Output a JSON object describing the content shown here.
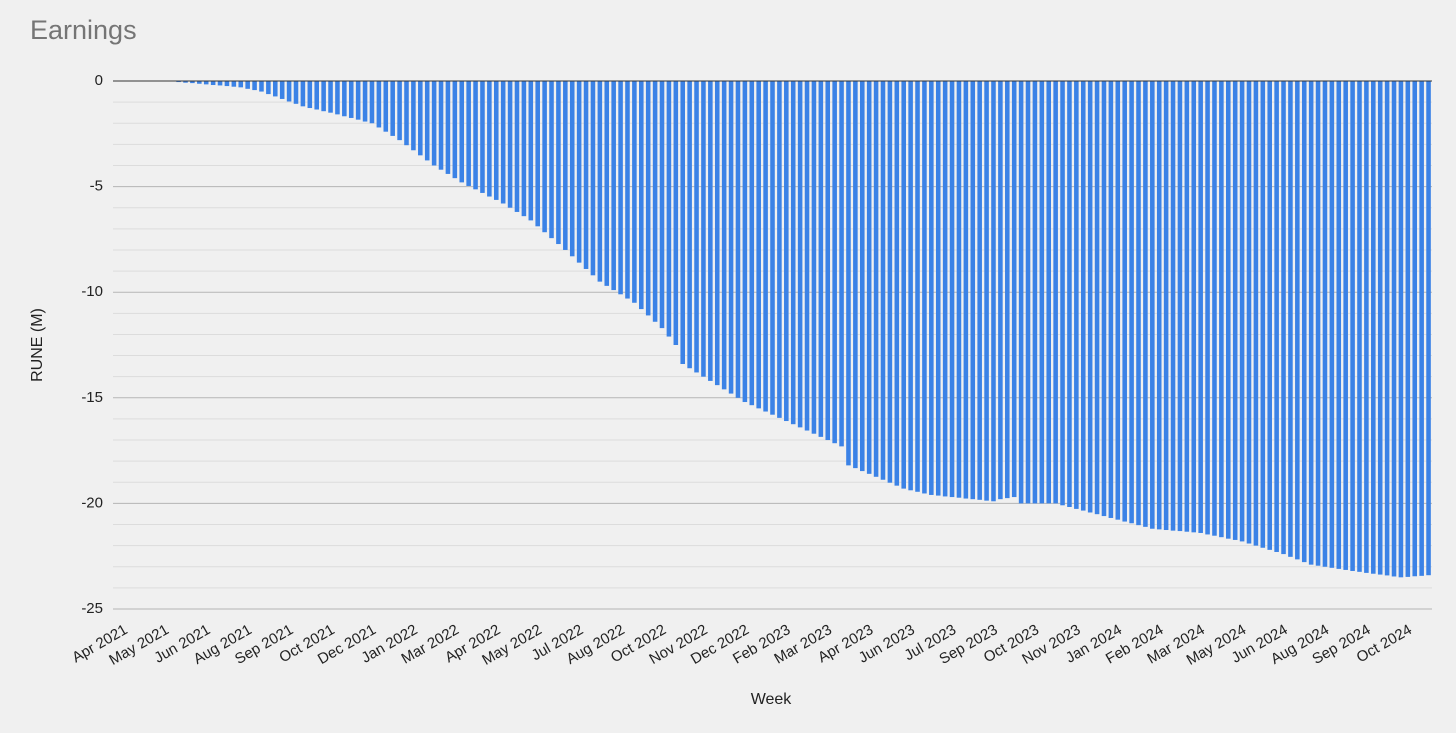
{
  "chart_data": {
    "type": "bar",
    "title": "Earnings",
    "x_label": "Week",
    "y_label": "RUNE (M)",
    "color": "#3b82e6",
    "grid": true,
    "ylim": [
      -25,
      0
    ],
    "yticks": [
      0,
      -5,
      -10,
      -15,
      -20,
      -25
    ],
    "yminor": [
      -1,
      -2,
      -3,
      -4,
      -6,
      -7,
      -8,
      -9,
      -11,
      -12,
      -13,
      -14,
      -16,
      -17,
      -18,
      -19,
      -21,
      -22,
      -23,
      -24
    ],
    "categories": [
      "Apr 2021",
      null,
      null,
      null,
      null,
      null,
      "May 2021",
      null,
      null,
      null,
      null,
      null,
      "Jun 2021",
      null,
      null,
      null,
      null,
      null,
      "Aug 2021",
      null,
      null,
      null,
      null,
      null,
      "Sep 2021",
      null,
      null,
      null,
      null,
      null,
      "Oct 2021",
      null,
      null,
      null,
      null,
      null,
      "Dec 2021",
      null,
      null,
      null,
      null,
      null,
      "Jan 2022",
      null,
      null,
      null,
      null,
      null,
      "Mar 2022",
      null,
      null,
      null,
      null,
      null,
      "Apr 2022",
      null,
      null,
      null,
      null,
      null,
      "May 2022",
      null,
      null,
      null,
      null,
      null,
      "Jul 2022",
      null,
      null,
      null,
      null,
      null,
      "Aug 2022",
      null,
      null,
      null,
      null,
      null,
      "Oct 2022",
      null,
      null,
      null,
      null,
      null,
      "Nov 2022",
      null,
      null,
      null,
      null,
      null,
      "Dec 2022",
      null,
      null,
      null,
      null,
      null,
      "Feb 2023",
      null,
      null,
      null,
      null,
      null,
      "Mar 2023",
      null,
      null,
      null,
      null,
      null,
      "Apr 2023",
      null,
      null,
      null,
      null,
      null,
      "Jun 2023",
      null,
      null,
      null,
      null,
      null,
      "Jul 2023",
      null,
      null,
      null,
      null,
      null,
      "Sep 2023",
      null,
      null,
      null,
      null,
      null,
      "Oct 2023",
      null,
      null,
      null,
      null,
      null,
      "Nov 2023",
      null,
      null,
      null,
      null,
      null,
      "Jan 2024",
      null,
      null,
      null,
      null,
      null,
      "Feb 2024",
      null,
      null,
      null,
      null,
      null,
      "Mar 2024",
      null,
      null,
      null,
      null,
      null,
      "May 2024",
      null,
      null,
      null,
      null,
      null,
      "Jun 2024",
      null,
      null,
      null,
      null,
      null,
      "Aug 2024",
      null,
      null,
      null,
      null,
      null,
      "Sep 2024",
      null,
      null,
      null,
      null,
      null,
      "Oct 2024",
      null,
      null,
      null,
      null
    ],
    "values": [
      0,
      0,
      0,
      0,
      0,
      0,
      0,
      0,
      0,
      -0.05,
      -0.08,
      -0.1,
      -0.13,
      -0.16,
      -0.19,
      -0.21,
      -0.24,
      -0.27,
      -0.3,
      -0.37,
      -0.43,
      -0.5,
      -0.62,
      -0.73,
      -0.85,
      -0.97,
      -1.08,
      -1.2,
      -1.28,
      -1.35,
      -1.43,
      -1.5,
      -1.58,
      -1.67,
      -1.75,
      -1.83,
      -1.92,
      -2.0,
      -2.2,
      -2.4,
      -2.6,
      -2.8,
      -3.04,
      -3.28,
      -3.52,
      -3.76,
      -4.0,
      -4.2,
      -4.4,
      -4.6,
      -4.8,
      -4.97,
      -5.13,
      -5.3,
      -5.47,
      -5.63,
      -5.8,
      -6.0,
      -6.2,
      -6.4,
      -6.6,
      -6.88,
      -7.16,
      -7.44,
      -7.72,
      -8.0,
      -8.3,
      -8.6,
      -8.9,
      -9.2,
      -9.5,
      -9.7,
      -9.9,
      -10.1,
      -10.3,
      -10.5,
      -10.8,
      -11.1,
      -11.4,
      -11.7,
      -12.1,
      -12.5,
      -13.4,
      -13.6,
      -13.8,
      -14.0,
      -14.2,
      -14.4,
      -14.6,
      -14.8,
      -15.0,
      -15.2,
      -15.35,
      -15.5,
      -15.65,
      -15.8,
      -15.95,
      -16.1,
      -16.25,
      -16.4,
      -16.55,
      -16.7,
      -16.85,
      -17.0,
      -17.15,
      -17.3,
      -18.2,
      -18.33,
      -18.47,
      -18.6,
      -18.74,
      -18.88,
      -19.02,
      -19.16,
      -19.3,
      -19.38,
      -19.45,
      -19.53,
      -19.6,
      -19.63,
      -19.67,
      -19.7,
      -19.73,
      -19.77,
      -19.8,
      -19.83,
      -19.87,
      -19.9,
      -19.8,
      -19.75,
      -19.7,
      -20.0,
      -20.0,
      -20.0,
      -20.0,
      -20.0,
      -20.0,
      -20.09,
      -20.17,
      -20.26,
      -20.34,
      -20.43,
      -20.51,
      -20.6,
      -20.69,
      -20.77,
      -20.86,
      -20.94,
      -21.03,
      -21.11,
      -21.2,
      -21.23,
      -21.26,
      -21.29,
      -21.31,
      -21.34,
      -21.37,
      -21.4,
      -21.47,
      -21.53,
      -21.6,
      -21.67,
      -21.73,
      -21.8,
      -21.9,
      -22.0,
      -22.1,
      -22.2,
      -22.3,
      -22.4,
      -22.53,
      -22.65,
      -22.78,
      -22.9,
      -22.95,
      -23.0,
      -23.05,
      -23.1,
      -23.15,
      -23.2,
      -23.24,
      -23.29,
      -23.33,
      -23.37,
      -23.41,
      -23.46,
      -23.5,
      -23.48,
      -23.45,
      -23.43,
      -23.4
    ]
  }
}
